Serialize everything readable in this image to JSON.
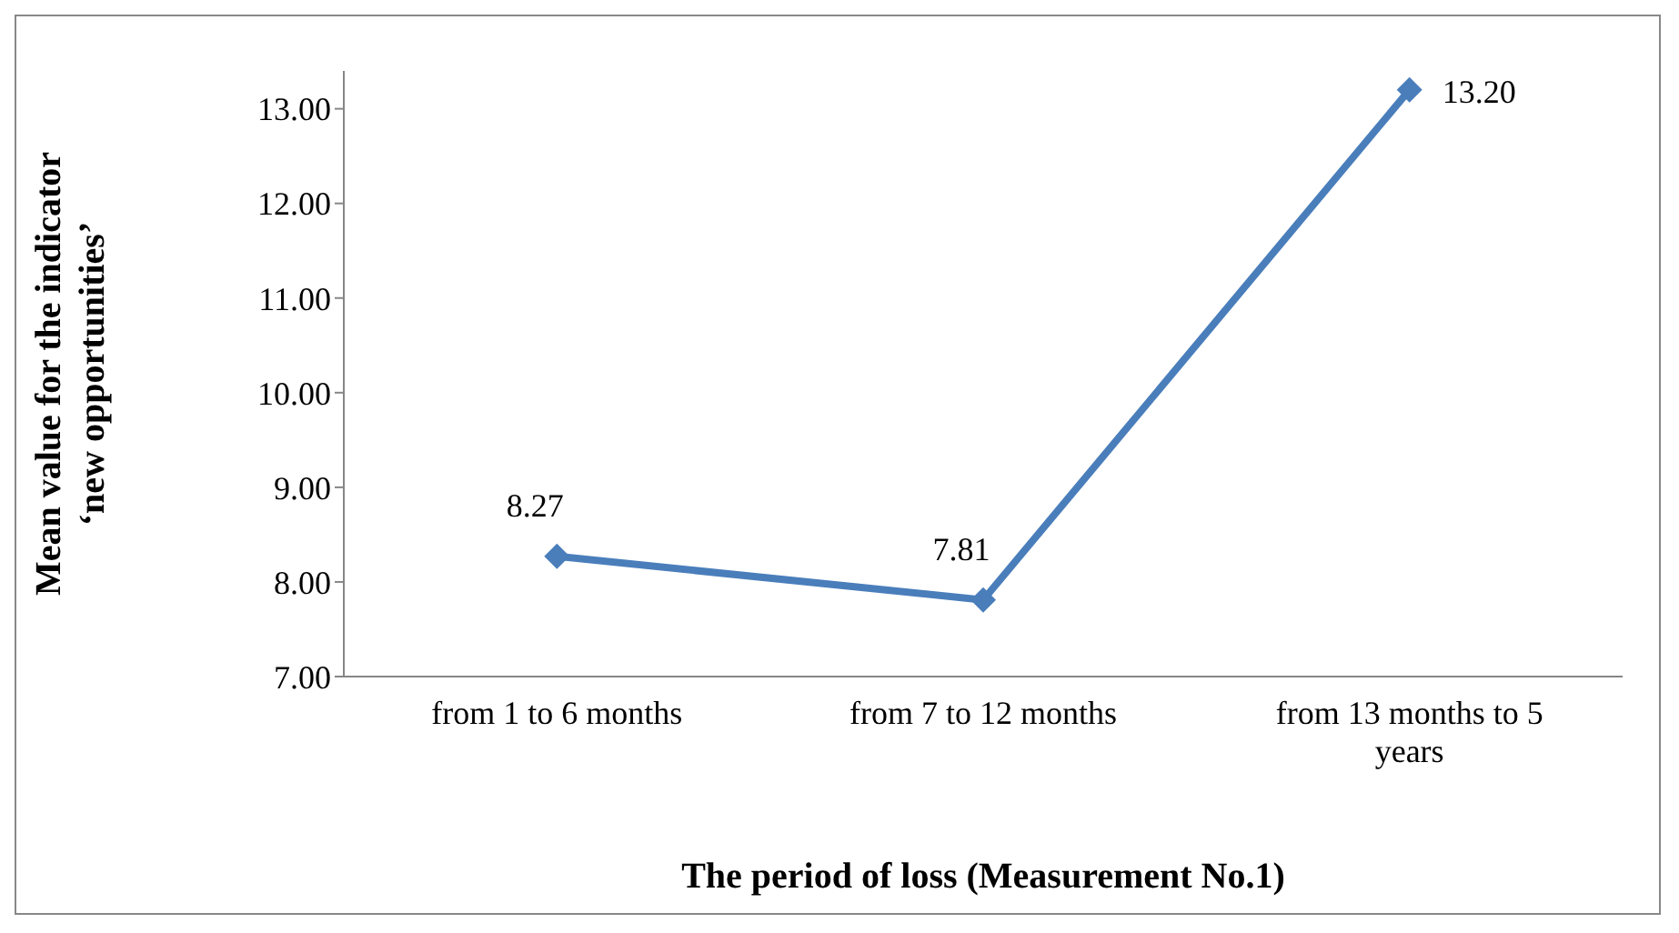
{
  "chart_data": {
    "type": "line",
    "xlabel": "The period of loss (Measurement No.1)",
    "ylabel": "Mean value for the indicator ‘new opportunities’",
    "categories": [
      "from 1 to 6 months",
      "from 7 to 12 months",
      "from 13 months to 5 years"
    ],
    "series": [
      {
        "color": "#4a7ebb",
        "values": [
          8.27,
          7.81,
          13.2
        ],
        "value_labels": [
          "8.27",
          "7.81",
          "13.20"
        ]
      }
    ],
    "ylim": [
      7,
      13.4
    ],
    "yticks": [
      {
        "value": 7,
        "label": "7.00"
      },
      {
        "value": 8,
        "label": "8.00"
      },
      {
        "value": 9,
        "label": "9.00"
      },
      {
        "value": 10,
        "label": "10.00"
      },
      {
        "value": 11,
        "label": "11.00"
      },
      {
        "value": 12,
        "label": "12.00"
      },
      {
        "value": 13,
        "label": "13.00"
      }
    ],
    "grid": false,
    "legend": false,
    "marker": "diamond",
    "line_style": "solid"
  }
}
